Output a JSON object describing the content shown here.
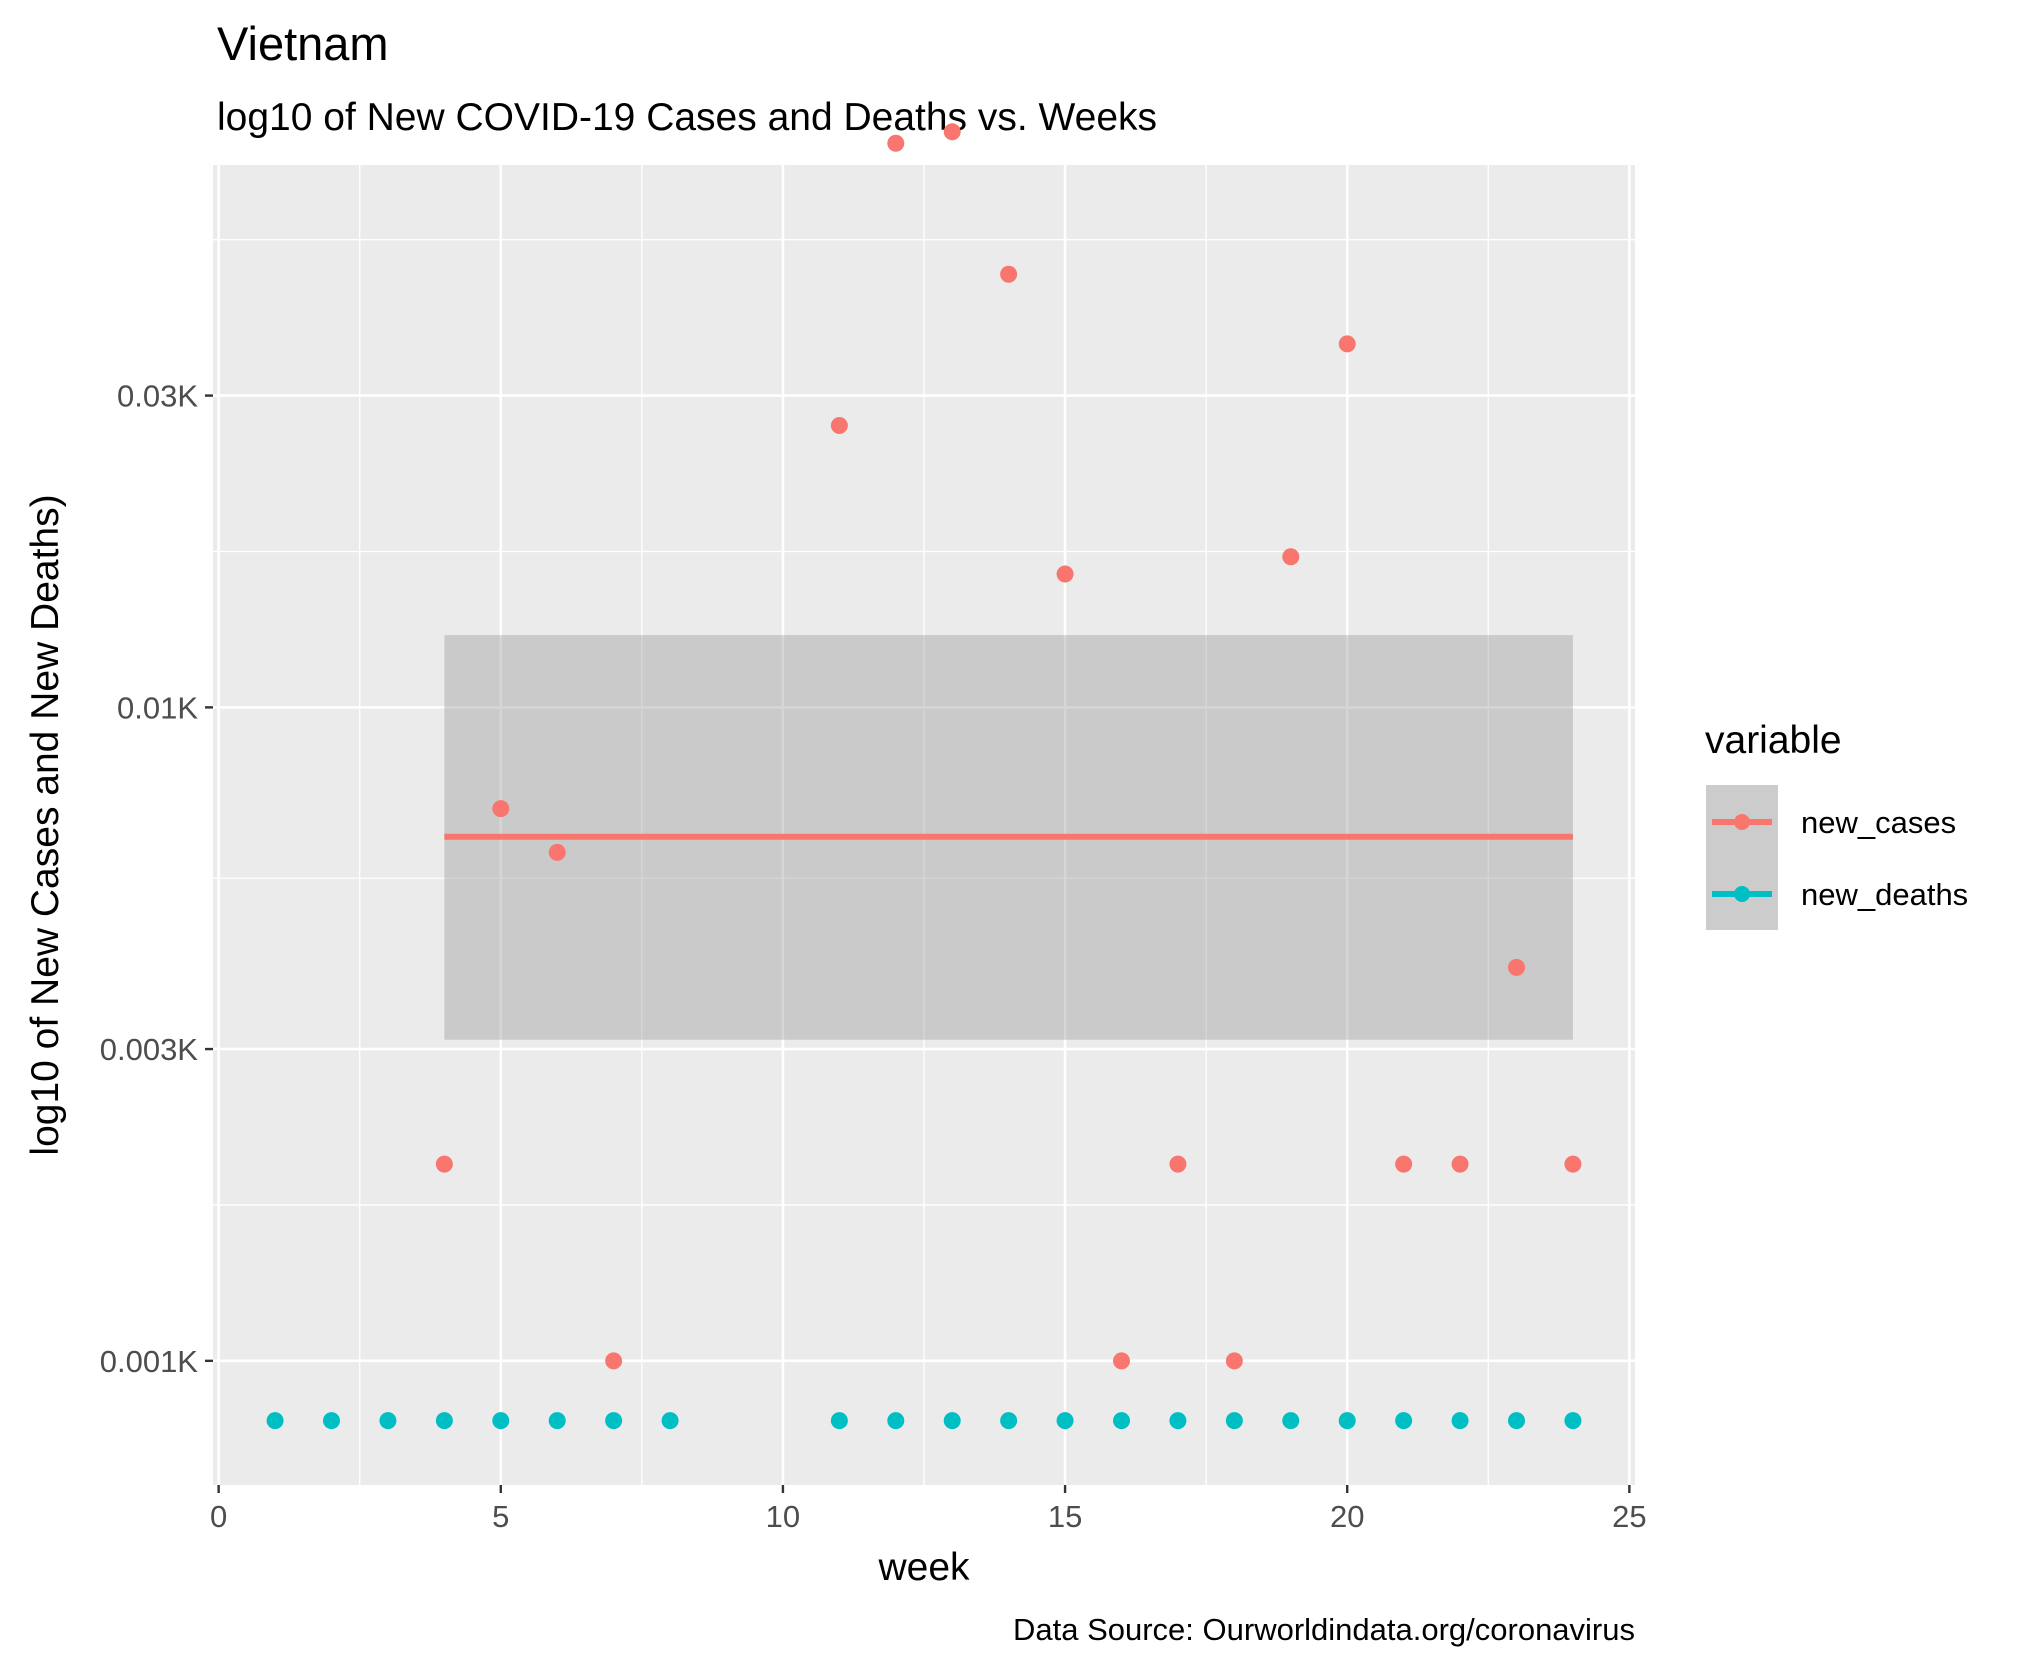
{
  "chart_data": {
    "type": "scatter",
    "title": "Vietnam",
    "subtitle": "log10 of New COVID-19 Cases and Deaths vs. Weeks",
    "xlabel": "week",
    "ylabel": "log10 of New Cases and New Deaths)",
    "caption": "Data Source: Ourworldindata.org/coronavirus",
    "y_scale": "log10",
    "xlim": [
      -0.1,
      25.1
    ],
    "ylim_log10": [
      -0.19,
      1.83
    ],
    "x_ticks": [
      {
        "value": 0,
        "label": "0"
      },
      {
        "value": 5,
        "label": "5"
      },
      {
        "value": 10,
        "label": "10"
      },
      {
        "value": 15,
        "label": "15"
      },
      {
        "value": 20,
        "label": "20"
      },
      {
        "value": 25,
        "label": "25"
      }
    ],
    "y_ticks": [
      {
        "value": 1,
        "label": "0.001K"
      },
      {
        "value": 3,
        "label": "0.003K"
      },
      {
        "value": 10,
        "label": "0.01K"
      },
      {
        "value": 30,
        "label": "0.03K"
      }
    ],
    "grid": true,
    "legend": {
      "title": "variable",
      "position": "right",
      "entries": [
        "new_cases",
        "new_deaths"
      ]
    },
    "series": [
      {
        "name": "new_cases",
        "color": "#F8766D",
        "x": [
          4,
          5,
          6,
          7,
          11,
          12,
          13,
          14,
          15,
          16,
          17,
          18,
          19,
          20,
          21,
          22,
          23,
          24
        ],
        "y": [
          2,
          7,
          6,
          1,
          27,
          73,
          76,
          46,
          16,
          1,
          2,
          1,
          17,
          36,
          2,
          2,
          4,
          2
        ]
      },
      {
        "name": "new_deaths",
        "color": "#00BFC4",
        "x": [
          1,
          2,
          3,
          4,
          5,
          6,
          7,
          8,
          11,
          12,
          13,
          14,
          15,
          16,
          17,
          18,
          19,
          20,
          21,
          22,
          23,
          24
        ],
        "y": [
          0.81,
          0.81,
          0.81,
          0.81,
          0.81,
          0.81,
          0.81,
          0.81,
          0.81,
          0.81,
          0.81,
          0.81,
          0.81,
          0.81,
          0.81,
          0.81,
          0.81,
          0.81,
          0.81,
          0.81,
          0.81,
          0.81
        ]
      }
    ],
    "fit": {
      "series": "new_cases",
      "color": "#F8766D",
      "x_range": [
        4,
        24
      ],
      "y": 6.34,
      "ci_low": 3.1,
      "ci_high": 12.9
    }
  }
}
